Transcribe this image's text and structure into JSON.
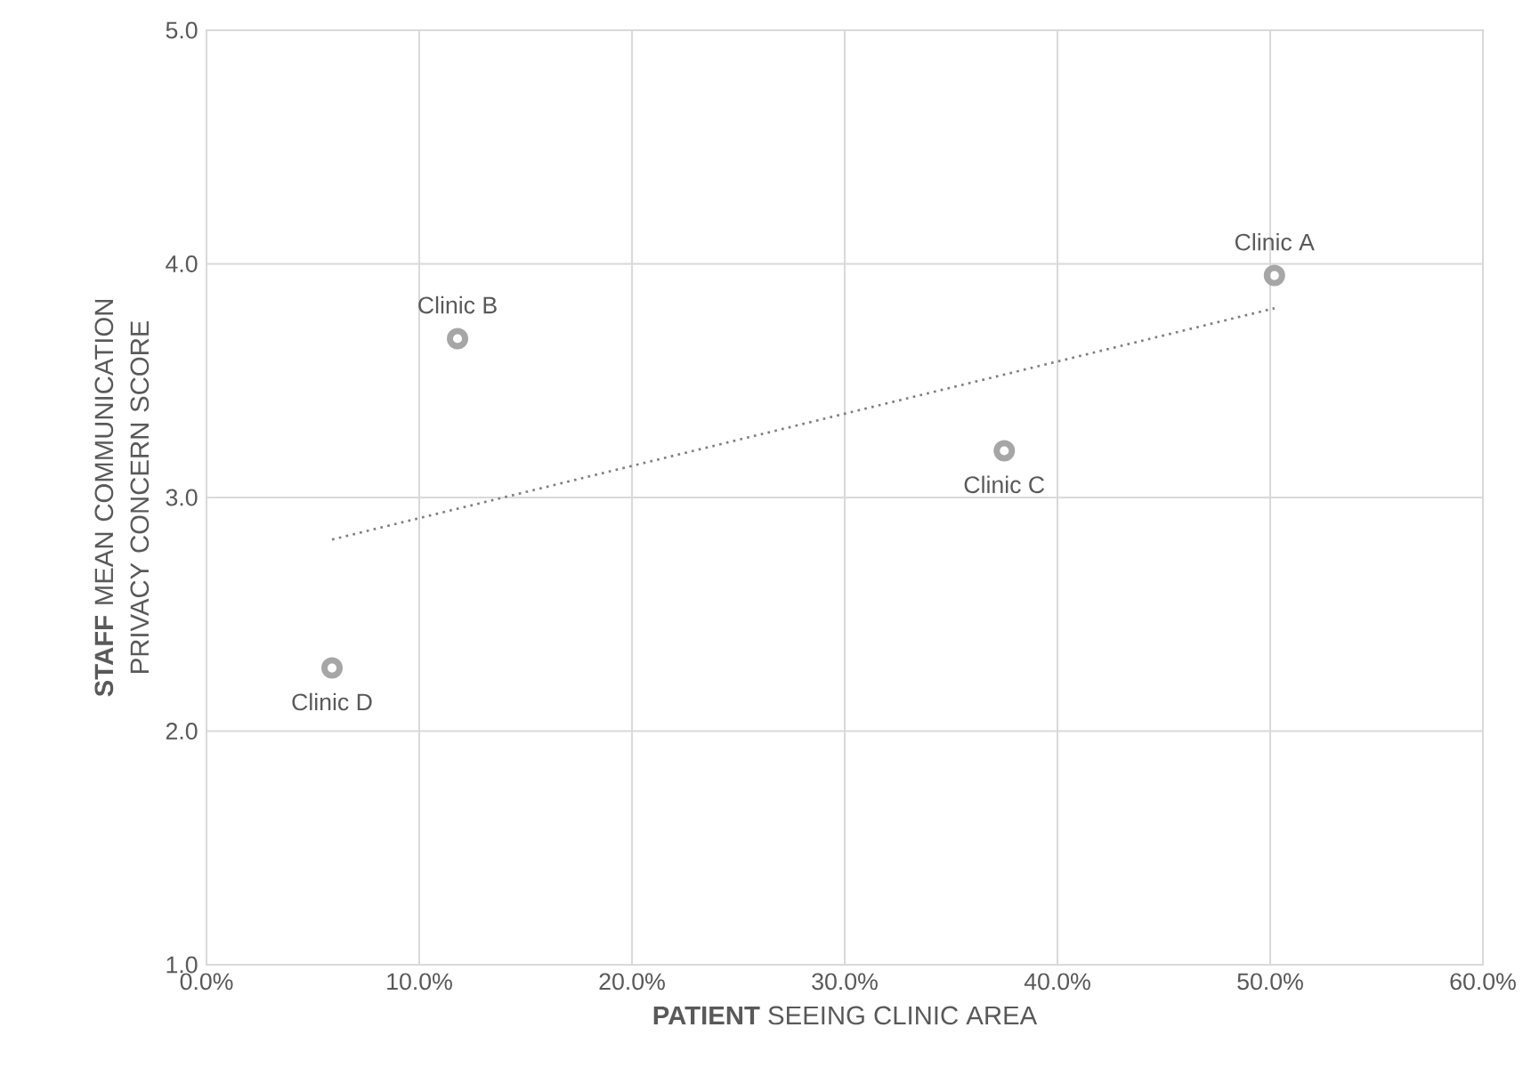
{
  "chart_data": {
    "type": "scatter",
    "xlabel": "**PATIENT** SEEING CLINIC AREA",
    "ylabel": "**STAFF** MEAN COMMUNICATION PRIVACY CONCERN SCORE",
    "series": [
      {
        "color": "#a6a6a6",
        "marker": "circle",
        "x": [
          50.2,
          11.8,
          37.5,
          5.9
        ],
        "values": [
          3.95,
          3.68,
          3.2,
          2.27
        ]
      },
      {
        "type": "line",
        "color": "#7f7f7f",
        "line_style": "dotted",
        "marker": "none",
        "x": [
          5.9,
          50.2
        ],
        "values": [
          2.82,
          3.81
        ]
      }
    ],
    "annotations": [
      {
        "text": "Clinic A",
        "x": 50.2,
        "y": 3.95
      },
      {
        "text": "Clinic B",
        "x": 11.8,
        "y": 3.68
      },
      {
        "text": "Clinic C",
        "x": 37.5,
        "y": 3.2
      },
      {
        "text": "Clinic D",
        "x": 5.9,
        "y": 2.27
      }
    ],
    "xlim": [
      0,
      60
    ],
    "xticks": [
      {
        "value": 0,
        "label": "0.0%"
      },
      {
        "value": 10,
        "label": "10.0%"
      },
      {
        "value": 20,
        "label": "20.0%"
      },
      {
        "value": 30,
        "label": "30.0%"
      },
      {
        "value": 40,
        "label": "40.0%"
      },
      {
        "value": 50,
        "label": "50.0%"
      },
      {
        "value": 60,
        "label": "60.0%"
      }
    ],
    "ylim": [
      1,
      5
    ],
    "yticks": [
      {
        "value": 1,
        "label": "1.0"
      },
      {
        "value": 2,
        "label": "2.0"
      },
      {
        "value": 3,
        "label": "3.0"
      },
      {
        "value": 4,
        "label": "4.0"
      },
      {
        "value": 5,
        "label": "5.0"
      }
    ],
    "grid": true
  }
}
